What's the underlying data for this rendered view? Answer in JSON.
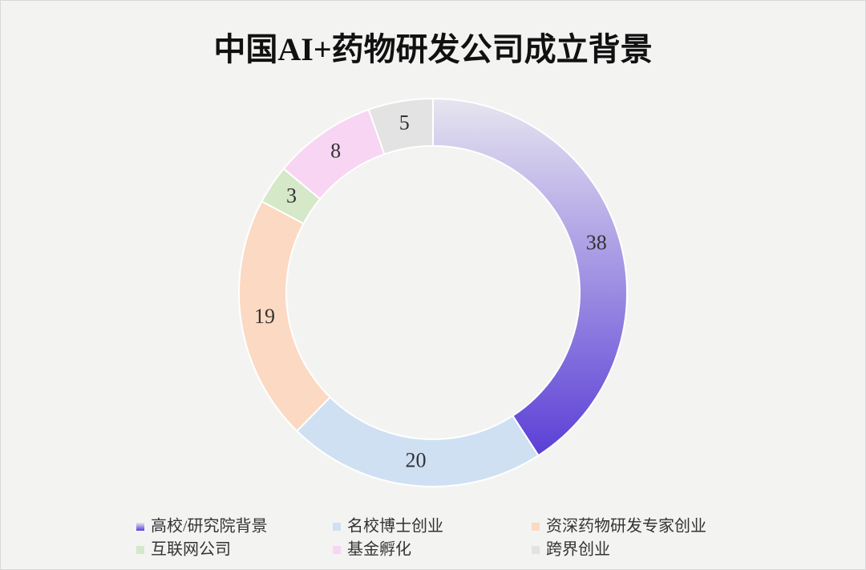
{
  "chart_data": {
    "type": "donut",
    "title": "中国AI+药物研发公司成立背景",
    "categories": [
      "高校/研究院背景",
      "名校博士创业",
      "资深药物研发专家创业",
      "互联网公司",
      "基金孵化",
      "跨界创业"
    ],
    "values": [
      38,
      20,
      19,
      3,
      8,
      5
    ],
    "colors": [
      "#5b3fd6",
      "#cfe0f3",
      "#fbd9c2",
      "#d5e8c8",
      "#f8d5f2",
      "#e3e3e3"
    ],
    "legend": "bottom"
  }
}
